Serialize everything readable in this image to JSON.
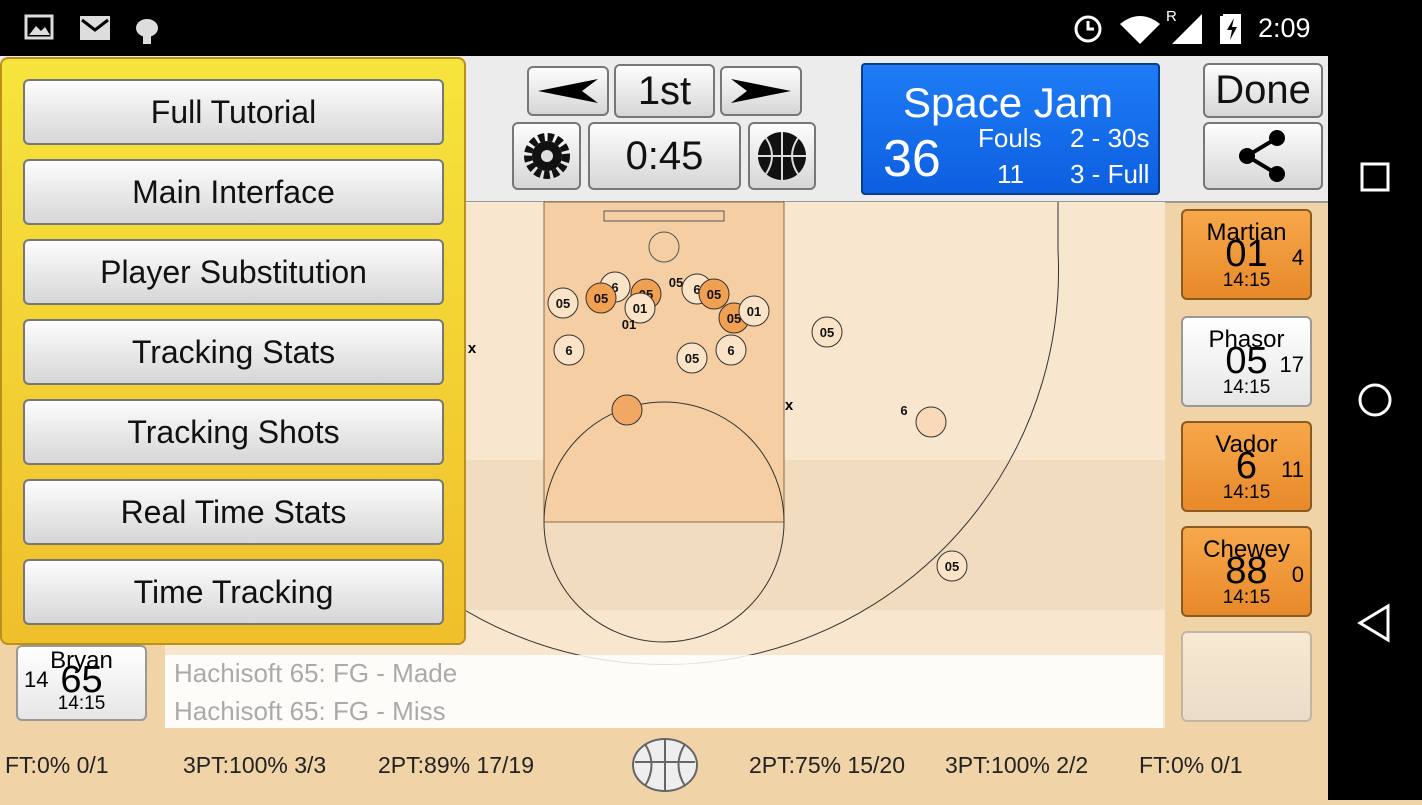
{
  "status_bar": {
    "time": "2:09",
    "network": "R"
  },
  "help_menu": {
    "items": [
      "Full Tutorial",
      "Main Interface",
      "Player Substitution",
      "Tracking Stats",
      "Tracking Shots",
      "Real Time Stats",
      "Time Tracking"
    ]
  },
  "toolbar": {
    "period": "1st",
    "clock": "0:45",
    "done": "Done"
  },
  "scoreboard": {
    "team": "Space Jam",
    "score": "36",
    "fouls_label": "Fouls",
    "fouls": "11",
    "timeouts": [
      "2 - 30s",
      "3 - Full"
    ]
  },
  "roster": [
    {
      "name": "Martian",
      "number": "01",
      "points": "4",
      "time": "14:15"
    },
    {
      "name": "Phasor",
      "number": "05",
      "points": "17",
      "time": "14:15"
    },
    {
      "name": "Vador",
      "number": "6",
      "points": "11",
      "time": "14:15"
    },
    {
      "name": "Chewey",
      "number": "88",
      "points": "0",
      "time": "14:15"
    }
  ],
  "bench_player": {
    "name": "Bryan",
    "number": "65",
    "points": "14",
    "time": "14:15"
  },
  "shots": [
    "05",
    "05",
    "6",
    "05",
    "01",
    "05",
    "6",
    "05",
    "05",
    "01",
    "01",
    "05",
    "6",
    "05",
    "6",
    "6",
    "05"
  ],
  "miss_marks": [
    "x",
    "x"
  ],
  "play_log": [
    "Hachisoft 65: FG - Made",
    "Hachisoft 65: FG - Miss"
  ],
  "stats": {
    "home": [
      "FT:0% 0/1",
      "3PT:100% 3/3",
      "2PT:89% 17/19"
    ],
    "away": [
      "2PT:75% 15/20",
      "3PT:100% 2/2",
      "FT:0% 0/1"
    ]
  }
}
